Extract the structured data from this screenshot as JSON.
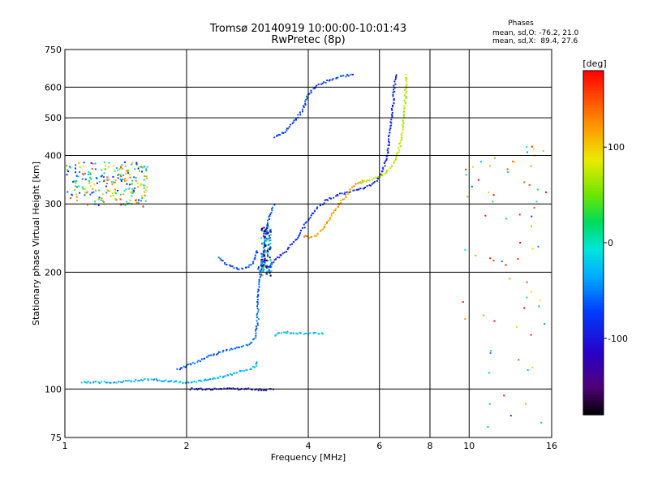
{
  "chart_data": {
    "type": "scatter",
    "title": "Tromsø 20140919 10:00:00-10:01:43",
    "subtitle": "RwPretec (8p)",
    "xlabel": "Frequency [MHz]",
    "ylabel": "Stationary phase Virtual Height [km]",
    "x_scale": "log",
    "y_scale": "log",
    "xlim": [
      1,
      16
    ],
    "ylim": [
      75,
      750
    ],
    "x_ticks": [
      1,
      2,
      4,
      6,
      8,
      10,
      16
    ],
    "x_tick_labels": [
      "1",
      "2",
      "4",
      "6",
      "8",
      "10",
      "16"
    ],
    "y_ticks": [
      75,
      100,
      200,
      300,
      400,
      500,
      600,
      750
    ],
    "y_tick_labels": [
      "75",
      "100",
      "200",
      "300",
      "400",
      "500",
      "600",
      "750"
    ],
    "grid": true,
    "phase_stats": {
      "header": "Phases",
      "line_o": "mean, sd,O: -76.2, 21.0",
      "line_x": "mean, sd,X:  89.4, 27.6"
    },
    "colorbar": {
      "label": "[deg]",
      "range": [
        -180,
        180
      ],
      "ticks": [
        100,
        0,
        -100
      ],
      "tick_labels": [
        "100",
        "0",
        "-100"
      ],
      "colormap": "rainbow"
    },
    "traces": [
      {
        "kind": "line",
        "phase": -95,
        "points": [
          [
            2.05,
            100
          ],
          [
            2.4,
            100
          ],
          [
            2.8,
            100
          ],
          [
            3.1,
            99.5
          ],
          [
            3.3,
            100
          ]
        ]
      },
      {
        "kind": "line",
        "phase": -30,
        "points": [
          [
            1.1,
            104
          ],
          [
            1.3,
            104
          ],
          [
            1.5,
            105
          ],
          [
            1.6,
            106
          ],
          [
            1.75,
            105
          ],
          [
            1.95,
            104
          ],
          [
            2.2,
            105
          ],
          [
            2.5,
            108
          ],
          [
            2.8,
            112
          ],
          [
            2.95,
            114
          ],
          [
            3.0,
            118
          ]
        ]
      },
      {
        "kind": "line",
        "phase": -60,
        "points": [
          [
            1.9,
            112
          ],
          [
            2.1,
            117
          ],
          [
            2.3,
            122
          ],
          [
            2.5,
            126
          ],
          [
            2.7,
            128
          ],
          [
            2.85,
            130
          ],
          [
            2.95,
            136
          ],
          [
            3.0,
            150
          ],
          [
            3.0,
            170
          ],
          [
            3.05,
            200
          ],
          [
            3.1,
            230
          ],
          [
            3.2,
            280
          ],
          [
            3.3,
            300
          ]
        ]
      },
      {
        "kind": "line",
        "phase": -70,
        "points": [
          [
            2.4,
            218
          ],
          [
            2.5,
            210
          ],
          [
            2.7,
            203
          ],
          [
            2.85,
            206
          ],
          [
            2.95,
            215
          ],
          [
            3.0,
            230
          ]
        ]
      },
      {
        "kind": "line",
        "phase": -88,
        "points": [
          [
            3.0,
            205
          ],
          [
            3.1,
            210
          ],
          [
            3.2,
            205
          ],
          [
            3.3,
            215
          ],
          [
            3.5,
            225
          ],
          [
            3.7,
            240
          ],
          [
            3.9,
            262
          ],
          [
            4.1,
            285
          ],
          [
            4.4,
            305
          ],
          [
            4.8,
            318
          ],
          [
            5.2,
            325
          ],
          [
            5.6,
            332
          ],
          [
            5.9,
            345
          ],
          [
            6.1,
            362
          ],
          [
            6.3,
            410
          ],
          [
            6.4,
            480
          ],
          [
            6.5,
            560
          ],
          [
            6.55,
            625
          ],
          [
            6.6,
            650
          ]
        ]
      },
      {
        "kind": "line",
        "phase": -75,
        "points": [
          [
            3.3,
            445
          ],
          [
            3.5,
            460
          ],
          [
            3.7,
            490
          ],
          [
            3.9,
            530
          ],
          [
            4.0,
            575
          ],
          [
            4.2,
            605
          ],
          [
            4.5,
            625
          ],
          [
            4.8,
            640
          ],
          [
            5.2,
            645
          ]
        ]
      },
      {
        "kind": "line",
        "phase": 120,
        "points": [
          [
            3.9,
            248
          ],
          [
            4.05,
            245
          ],
          [
            4.2,
            250
          ],
          [
            4.4,
            262
          ],
          [
            4.6,
            285
          ],
          [
            4.9,
            310
          ],
          [
            5.2,
            335
          ],
          [
            5.5,
            345
          ]
        ]
      },
      {
        "kind": "line",
        "phase": 70,
        "points": [
          [
            5.4,
            340
          ],
          [
            5.8,
            348
          ],
          [
            6.2,
            360
          ],
          [
            6.5,
            380
          ],
          [
            6.7,
            410
          ],
          [
            6.85,
            470
          ],
          [
            6.95,
            560
          ],
          [
            7.0,
            650
          ]
        ]
      },
      {
        "kind": "line",
        "phase": -25,
        "points": [
          [
            3.3,
            138
          ],
          [
            3.5,
            140
          ],
          [
            3.8,
            139
          ],
          [
            4.1,
            139
          ],
          [
            4.4,
            139
          ]
        ]
      },
      {
        "kind": "cluster",
        "phase": -80,
        "center": [
          3.15,
          230
        ],
        "spread": [
          0.09,
          35
        ],
        "count": 120
      },
      {
        "kind": "cluster",
        "phase": 30,
        "center": [
          1.3,
          340
        ],
        "spread": [
          0.3,
          45
        ],
        "count": 240
      },
      {
        "kind": "cluster",
        "phase": 60,
        "center": [
          12.5,
          250
        ],
        "spread": [
          3.0,
          180
        ],
        "count": 70
      }
    ]
  }
}
